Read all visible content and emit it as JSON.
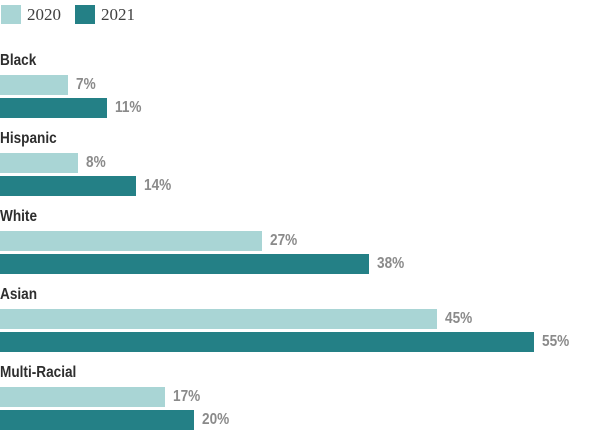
{
  "chart_data": {
    "type": "bar",
    "orientation": "horizontal",
    "title": "",
    "xlabel": "",
    "ylabel": "",
    "categories": [
      "Black",
      "Hispanic",
      "White",
      "Asian",
      "Multi-Racial"
    ],
    "series": [
      {
        "name": "2020",
        "color": "#a9d5d5",
        "values": [
          7,
          8,
          27,
          45,
          17
        ],
        "labels": [
          "7%",
          "8%",
          "27%",
          "45%",
          "17%"
        ]
      },
      {
        "name": "2021",
        "color": "#248086",
        "values": [
          11,
          14,
          38,
          55,
          20
        ],
        "labels": [
          "11%",
          "14%",
          "38%",
          "55%",
          "20%"
        ]
      }
    ],
    "value_suffix": "%",
    "xlim": [
      0,
      60
    ],
    "grid": false,
    "legend_position": "top-left"
  },
  "legend": {
    "items": [
      {
        "label": "2020",
        "color": "#a9d5d5"
      },
      {
        "label": "2021",
        "color": "#248086"
      }
    ]
  },
  "colors": {
    "background": "#ffffff",
    "category_label": "#2e2e2e",
    "value_label": "#8a8a8a",
    "legend_text": "#3f3f3f",
    "series_2020": "#a9d5d5",
    "series_2021": "#248086"
  }
}
